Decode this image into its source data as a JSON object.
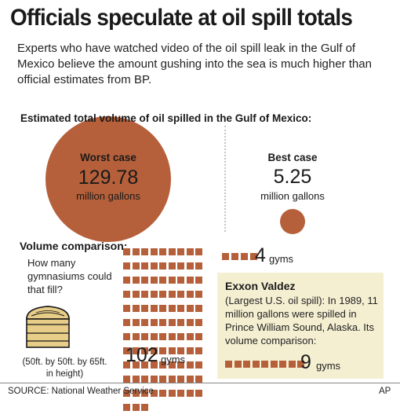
{
  "header": {
    "title": "Officials speculate at oil spill totals",
    "intro": "Experts who have watched video of the oil spill leak in the Gulf of Mexico believe the amount gushing into the sea is much higher than official estimates from BP."
  },
  "chart_data": {
    "type": "bubble",
    "title": "Estimated total volume of oil spilled in the Gulf of Mexico:",
    "unit": "million gallons",
    "cases": [
      {
        "label": "Worst case",
        "value": 129.78,
        "value_text": "129.78"
      },
      {
        "label": "Best case",
        "value": 5.25,
        "value_text": "5.25"
      }
    ],
    "color": "#b5603a"
  },
  "volume": {
    "heading": "Volume comparison:",
    "question": "How many gymnasiums could that fill?",
    "gym_dimensions": "(50ft. by 50ft. by 65ft. in height)",
    "worst_gyms": 102,
    "worst_gyms_text": "102",
    "best_gyms": 4,
    "best_gyms_text": "4",
    "unit": "gyms"
  },
  "exxon": {
    "title": "Exxon Valdez",
    "body": "(Largest U.S. oil spill): In 1989, 11 million gallons were spilled in Prince William Sound, Alaska. Its volume comparison:",
    "gyms": 9,
    "gyms_text": "9",
    "unit": "gyms",
    "box_color": "#f5efd2"
  },
  "footer": {
    "source": "SOURCE: National Weather Service",
    "credit": "AP"
  }
}
